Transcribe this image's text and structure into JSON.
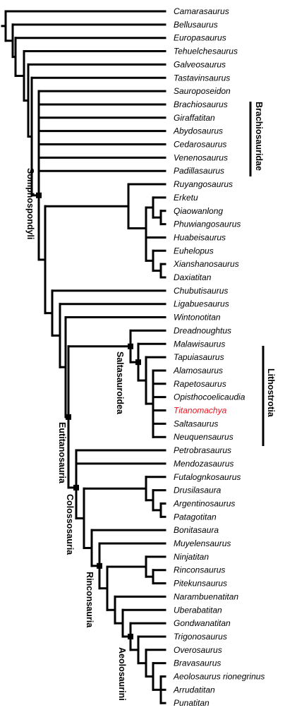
{
  "highlight_color": "#e8141e",
  "taxa": [
    "Camarasaurus",
    "Bellusaurus",
    "Europasaurus",
    "Tehuelchesaurus",
    "Galveosaurus",
    "Tastavinsaurus",
    "Sauroposeidon",
    "Brachiosaurus",
    "Giraffatitan",
    "Abydosaurus",
    "Cedarosaurus",
    "Venenosaurus",
    "Padillasaurus",
    "Ruyangosaurus",
    "Erketu",
    "Qiaowanlong",
    "Phuwiangosaurus",
    "Huabeisaurus",
    "Euhelopus",
    "Xianshanosaurus",
    "Daxiatitan",
    "Chubutisaurus",
    "Ligabuesaurus",
    "Wintonotitan",
    "Dreadnoughtus",
    "Malawisaurus",
    "Tapuiasaurus",
    "Alamosaurus",
    "Rapetosaurus",
    "Opisthocoelicaudia",
    "Titanomachya",
    "Saltasaurus",
    "Neuquensaurus",
    "Petrobrasaurus",
    "Mendozasaurus",
    "Futalognkosaurus",
    "Drusilasaura",
    "Argentinosaurus",
    "Patagotitan",
    "Bonitasaura",
    "Muyelensaurus",
    "Ninjatitan",
    "Rinconsaurus",
    "Pitekunsaurus",
    "Narambuenatitan",
    "Uberabatitan",
    "Gondwanatitan",
    "Trigonosaurus",
    "Overosaurus",
    "Bravasaurus",
    "Aeolosaurus rionegrinus",
    "Arrudatitan",
    "Punatitan"
  ],
  "highlighted_taxon": "Titanomachya",
  "clade_labels": {
    "somphospondyli": "Somphospondyli",
    "eutitanosauria": "Eutitanosauria",
    "colossosauria": "Colossosauria",
    "rinconsauria": "Rinconsauria",
    "aeolosaurini": "Aeolosaurini",
    "saltasauroidea": "Saltasauroidea",
    "brachiosauridae": "Brachiosauridae",
    "lithostrotia": "Lithostrotia"
  }
}
